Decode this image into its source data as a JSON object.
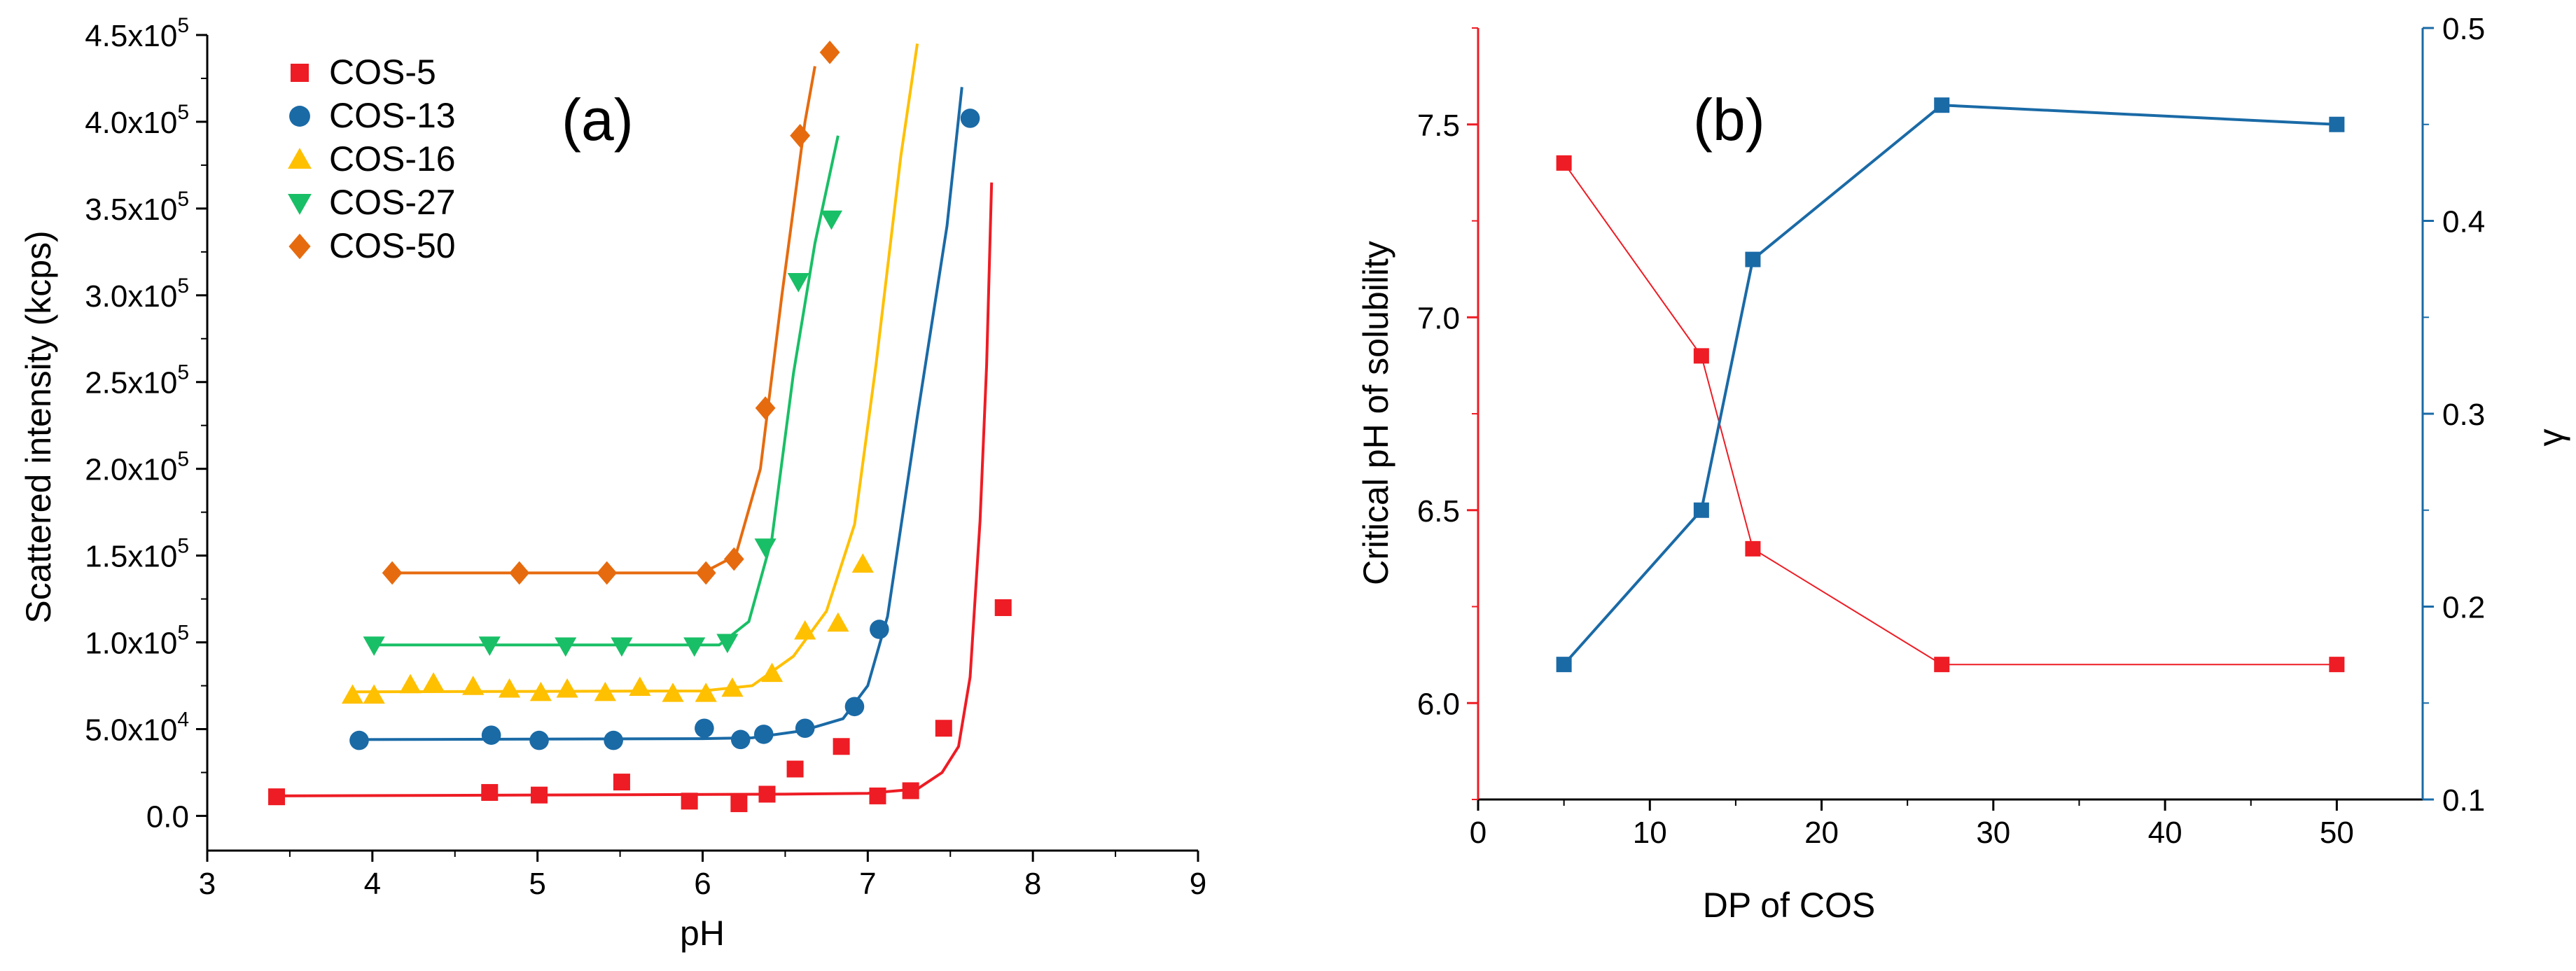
{
  "colors": {
    "COS-5": "#ee1c24",
    "COS-13": "#1a6aa6",
    "COS-16": "#ffc000",
    "COS-27": "#19bf66",
    "COS-50": "#e66b0f",
    "left_axis_b": "#ee1c24",
    "right_axis_b": "#1a6aa6",
    "axis": "#000000"
  },
  "chart_data": [
    {
      "type": "scatter",
      "panel_label": "(a)",
      "xlabel": "pH",
      "ylabel": "Scattered intensity (kcps)",
      "xlim": [
        3,
        9
      ],
      "ylim": [
        -20000,
        450000
      ],
      "xticks": [
        "3",
        "4",
        "5",
        "6",
        "7",
        "8",
        "9"
      ],
      "yticks": [
        {
          "value": 0,
          "label": "0.0"
        },
        {
          "value": 50000,
          "label": "5.0x10",
          "exp": "4"
        },
        {
          "value": 100000,
          "label": "1.0x10",
          "exp": "5"
        },
        {
          "value": 150000,
          "label": "1.5x10",
          "exp": "5"
        },
        {
          "value": 200000,
          "label": "2.0x10",
          "exp": "5"
        },
        {
          "value": 250000,
          "label": "2.5x10",
          "exp": "5"
        },
        {
          "value": 300000,
          "label": "3.0x10",
          "exp": "5"
        },
        {
          "value": 350000,
          "label": "3.5x10",
          "exp": "5"
        },
        {
          "value": 400000,
          "label": "4.0x10",
          "exp": "5"
        },
        {
          "value": 450000,
          "label": "4.5x10",
          "exp": "5"
        }
      ],
      "legend_position": "top-left",
      "series": [
        {
          "name": "COS-5",
          "marker": "square",
          "points": [
            [
              3.42,
              11000
            ],
            [
              4.71,
              13500
            ],
            [
              5.01,
              12000
            ],
            [
              5.51,
              19500
            ],
            [
              5.92,
              8500
            ],
            [
              6.22,
              7000
            ],
            [
              6.39,
              12500
            ],
            [
              6.56,
              27000
            ],
            [
              6.84,
              40000
            ],
            [
              7.06,
              11500
            ],
            [
              7.26,
              14500
            ],
            [
              7.46,
              50500
            ],
            [
              7.82,
              120000
            ]
          ],
          "fit": [
            [
              3.42,
              11500
            ],
            [
              6.5,
              12500
            ],
            [
              7.0,
              13000
            ],
            [
              7.3,
              15500
            ],
            [
              7.45,
              25000
            ],
            [
              7.55,
              40000
            ],
            [
              7.62,
              80000
            ],
            [
              7.68,
              170000
            ],
            [
              7.72,
              260000
            ],
            [
              7.75,
              365000
            ]
          ]
        },
        {
          "name": "COS-13",
          "marker": "circle",
          "points": [
            [
              3.92,
              43500
            ],
            [
              4.72,
              46500
            ],
            [
              5.01,
              43500
            ],
            [
              5.46,
              43500
            ],
            [
              6.01,
              50500
            ],
            [
              6.23,
              44000
            ],
            [
              6.37,
              47000
            ],
            [
              6.62,
              50500
            ],
            [
              6.92,
              63000
            ],
            [
              7.07,
              107500
            ],
            [
              7.62,
              402000
            ]
          ],
          "fit": [
            [
              3.92,
              44000
            ],
            [
              6.0,
              44500
            ],
            [
              6.3,
              45000
            ],
            [
              6.6,
              49000
            ],
            [
              6.85,
              56000
            ],
            [
              7.0,
              75000
            ],
            [
              7.12,
              115000
            ],
            [
              7.3,
              230000
            ],
            [
              7.48,
              340000
            ],
            [
              7.57,
              420000
            ]
          ]
        },
        {
          "name": "COS-16",
          "marker": "triangle-up",
          "points": [
            [
              3.88,
              69500
            ],
            [
              4.01,
              69500
            ],
            [
              4.23,
              75500
            ],
            [
              4.37,
              76500
            ],
            [
              4.61,
              74500
            ],
            [
              4.83,
              73000
            ],
            [
              5.02,
              71000
            ],
            [
              5.18,
              73000
            ],
            [
              5.41,
              71000
            ],
            [
              5.62,
              74000
            ],
            [
              5.82,
              70500
            ],
            [
              6.02,
              70500
            ],
            [
              6.18,
              73500
            ],
            [
              6.42,
              82000
            ],
            [
              6.62,
              106500
            ],
            [
              6.82,
              111000
            ],
            [
              6.97,
              145000
            ]
          ],
          "fit": [
            [
              3.88,
              71500
            ],
            [
              6.0,
              72000
            ],
            [
              6.3,
              75000
            ],
            [
              6.55,
              92000
            ],
            [
              6.75,
              118000
            ],
            [
              6.92,
              168000
            ],
            [
              7.05,
              260000
            ],
            [
              7.2,
              380000
            ],
            [
              7.3,
              445000
            ]
          ]
        },
        {
          "name": "COS-27",
          "marker": "triangle-down",
          "points": [
            [
              4.01,
              98500
            ],
            [
              4.71,
              98500
            ],
            [
              5.17,
              98000
            ],
            [
              5.51,
              98000
            ],
            [
              5.95,
              98000
            ],
            [
              6.15,
              100000
            ],
            [
              6.38,
              155000
            ],
            [
              6.58,
              308000
            ],
            [
              6.78,
              344000
            ]
          ],
          "fit": [
            [
              4.01,
              98500
            ],
            [
              6.1,
              98500
            ],
            [
              6.28,
              112000
            ],
            [
              6.42,
              160000
            ],
            [
              6.55,
              255000
            ],
            [
              6.68,
              330000
            ],
            [
              6.82,
              392000
            ]
          ]
        },
        {
          "name": "COS-50",
          "marker": "diamond",
          "points": [
            [
              4.12,
              140000
            ],
            [
              4.89,
              140000
            ],
            [
              5.42,
              140000
            ],
            [
              6.02,
              140000
            ],
            [
              6.19,
              148000
            ],
            [
              6.38,
              235000
            ],
            [
              6.59,
              392000
            ],
            [
              6.77,
              440000
            ]
          ],
          "fit": [
            [
              4.12,
              140000
            ],
            [
              6.0,
              140000
            ],
            [
              6.2,
              150000
            ],
            [
              6.35,
              200000
            ],
            [
              6.48,
              300000
            ],
            [
              6.62,
              400000
            ],
            [
              6.68,
              432000
            ]
          ]
        }
      ]
    },
    {
      "type": "line",
      "panel_label": "(b)",
      "xlabel": "DP of COS",
      "ylabel": "Critical pH of solubility",
      "y2label": "γ",
      "xlim": [
        0,
        55
      ],
      "ylim": [
        5.75,
        7.75
      ],
      "y2lim": [
        0.1,
        0.5
      ],
      "xticks": [
        "0",
        "10",
        "20",
        "30",
        "40",
        "50"
      ],
      "yticks": [
        "6.0",
        "6.5",
        "7.0",
        "7.5"
      ],
      "y2ticks": [
        "0.1",
        "0.2",
        "0.3",
        "0.4",
        "0.5"
      ],
      "series": [
        {
          "name": "Critical pH of solubility",
          "axis": "left",
          "x": [
            5,
            13,
            16,
            27,
            50
          ],
          "values": [
            7.4,
            6.9,
            6.4,
            6.1,
            6.1
          ]
        },
        {
          "name": "γ",
          "axis": "right",
          "x": [
            5,
            13,
            16,
            27,
            50
          ],
          "values": [
            0.17,
            0.25,
            0.38,
            0.46,
            0.45
          ]
        }
      ]
    }
  ]
}
